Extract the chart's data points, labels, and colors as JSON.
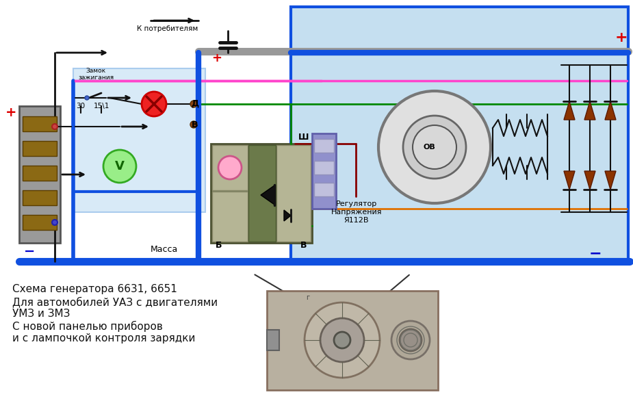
{
  "bg_color": "#ffffff",
  "diagram_bg": "#c5dff0",
  "left_panel_bg": "#d8eaf7",
  "title_line1": "Схема генератора 6631, 6651",
  "title_line2": "Для автомобилей УАЗ с двигателями",
  "title_line3": "УМЗ и ЗМЗ",
  "title_line4": "С новой панелью приборов",
  "title_line5": "и с лампочкой контроля зарядки",
  "k_potrebitelyam": "К потребителям",
  "zamok_text": "Замок\nзажигания",
  "regulator_text": "Регулятор\nНапряжения\nЯ112В",
  "massa_text": "Масса",
  "wire_blue": "#1050e0",
  "wire_green": "#008800",
  "wire_pink": "#ff44aa",
  "wire_orange": "#e07000",
  "wire_darkred": "#880000",
  "wire_black": "#111111",
  "wire_gray": "#888888",
  "border_blue": "#1050e0"
}
